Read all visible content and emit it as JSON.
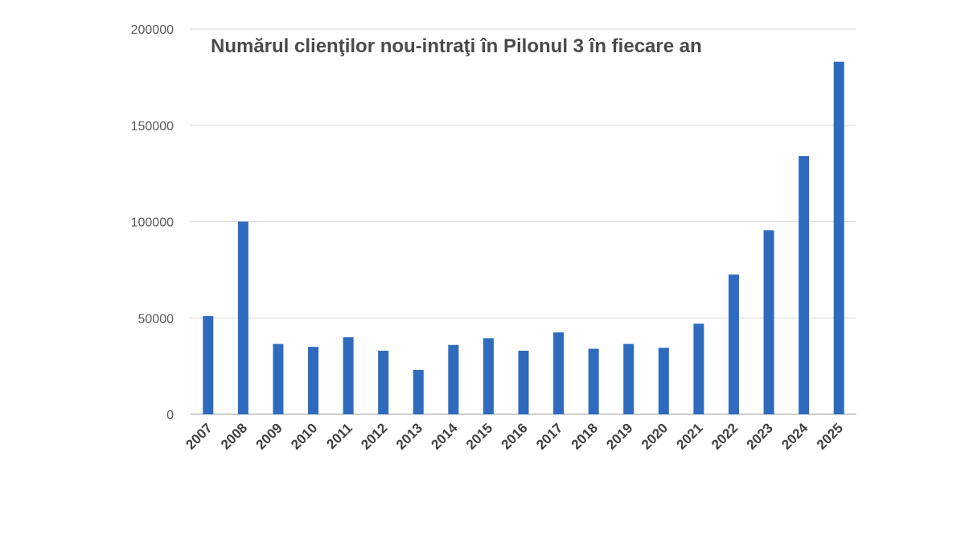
{
  "chart_data": {
    "type": "bar",
    "title": "Numărul clienţilor nou-intraţi în Pilonul 3 în fiecare an",
    "xlabel": "",
    "ylabel": "",
    "categories": [
      "2007",
      "2008",
      "2009",
      "2010",
      "2011",
      "2012",
      "2013",
      "2014",
      "2015",
      "2016",
      "2017",
      "2018",
      "2019",
      "2020",
      "2021",
      "2022",
      "2023",
      "2024",
      "2025"
    ],
    "values": [
      51000,
      100000,
      36500,
      35000,
      40000,
      33000,
      23000,
      36000,
      39500,
      33000,
      42500,
      34000,
      36500,
      34500,
      47000,
      72500,
      95500,
      134000,
      183000
    ],
    "ylim": [
      0,
      200000
    ],
    "yticks": [
      "0",
      "50000",
      "100000",
      "150000",
      "200000"
    ],
    "grid": true,
    "legend": "none",
    "bar_color": "#2e6bbf",
    "grid_color": "#d9d9d9",
    "axis_color": "#bfbfbf",
    "text_color": "#595959"
  }
}
